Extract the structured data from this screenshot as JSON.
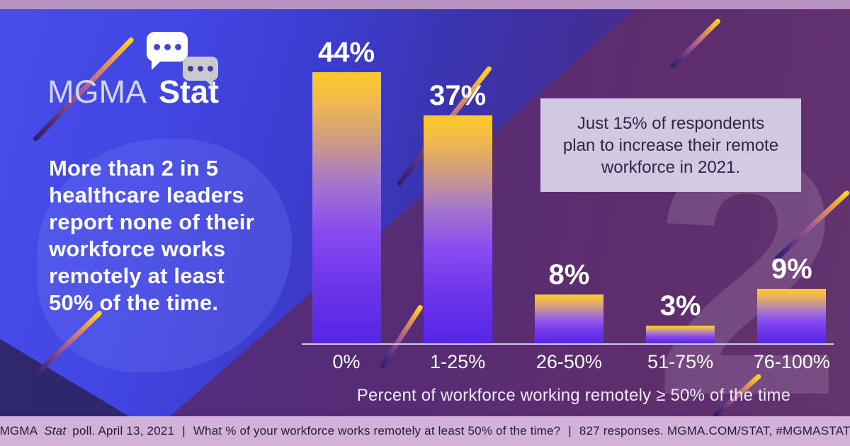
{
  "brand": {
    "mgma": "MGMA",
    "stat": "Stat"
  },
  "headline": {
    "lines": [
      "More than 2 in 5",
      "healthcare leaders",
      "report none of their",
      "workforce works",
      "remotely at least",
      "50% of the time."
    ]
  },
  "callout": {
    "lines": [
      "Just 15% of respondents",
      "plan to increase their remote",
      "workforce in 2021."
    ]
  },
  "chart_data": {
    "type": "bar",
    "categories": [
      "0%",
      "1-25%",
      "26-50%",
      "51-75%",
      "76-100%"
    ],
    "values": [
      44,
      37,
      8,
      3,
      9
    ],
    "value_labels": [
      "44%",
      "37%",
      "8%",
      "3%",
      "9%"
    ],
    "xlabel": "Percent of workforce working remotely ≥ 50% of the time",
    "ylabel": "",
    "ylim": [
      0,
      50
    ],
    "grid": false,
    "legend": false,
    "annotation": "Just 15% of respondents plan to increase their remote workforce in 2021.",
    "bar_gradient_top": "#fbca27",
    "bar_gradient_bottom": "#5526e6"
  },
  "footer": {
    "brand": "MGMA",
    "brand_italic": "Stat",
    "poll_info": "poll. April 13, 2021",
    "separator": "|",
    "question": "What % of your workforce works remotely at least 50% of the time?",
    "responses": "827 responses. MGMA.COM/STAT, #MGMASTAT"
  },
  "decor": {
    "big_numeral": "2"
  },
  "colors": {
    "top_strip": "#b993c4",
    "footer_bg": "#d2b2d8",
    "background_blue": "#4246e2",
    "background_purple": "#5e2d6c",
    "callout_bg": "#dbd6eb",
    "callout_text": "#2e2647",
    "accent_gold": "#ffd21f",
    "text_white": "#ffffff"
  }
}
